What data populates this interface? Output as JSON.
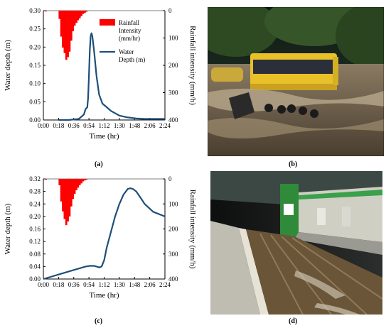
{
  "panels": {
    "a": {
      "caption": "(a)"
    },
    "b": {
      "caption": "(b)"
    },
    "c": {
      "caption": "(c)"
    },
    "d": {
      "caption": "(d)"
    }
  },
  "colors": {
    "rain": "#ff0000",
    "depth": "#1f4e79"
  },
  "chart_data": [
    {
      "type": "line",
      "panel": "a",
      "xlabel": "Time (hr)",
      "ylabel": "Water depth (m)",
      "y2label": "Rainfall intensity (mm/h)",
      "xticks": [
        "0:00",
        "0:18",
        "0:36",
        "0:54",
        "1:12",
        "1:30",
        "1:48",
        "2:06",
        "2:24"
      ],
      "yticks": [
        "0.00",
        "0.05",
        "0.10",
        "0.15",
        "0.20",
        "0.25",
        "0.30"
      ],
      "y2ticks": [
        "0",
        "100",
        "200",
        "300",
        "400"
      ],
      "xlim": [
        0,
        144
      ],
      "ylim": [
        0,
        0.3
      ],
      "y2lim": [
        0,
        400
      ],
      "y2_inverted": true,
      "legend": {
        "position": "top-right",
        "entries": [
          "Rainfall Intensity (mm/hr)",
          "Water Depth (m)"
        ]
      },
      "series": [
        {
          "name": "Rainfall Intensity (mm/hr)",
          "kind": "bar",
          "axis": "right",
          "x": [
            3,
            19,
            21,
            23,
            25,
            27,
            29,
            31,
            33,
            35,
            37,
            39,
            41,
            43,
            45,
            47,
            49,
            51
          ],
          "values": [
            3,
            30,
            95,
            135,
            155,
            180,
            170,
            150,
            110,
            75,
            55,
            45,
            35,
            28,
            20,
            12,
            8,
            4
          ]
        },
        {
          "name": "Water Depth (m)",
          "kind": "line",
          "axis": "left",
          "x": [
            18,
            30,
            42,
            48,
            50,
            52,
            53,
            54,
            55,
            56,
            57,
            58,
            60,
            63,
            66,
            70,
            75,
            80,
            90,
            100,
            110,
            120,
            130,
            144
          ],
          "values": [
            0.0,
            0.0,
            0.003,
            0.015,
            0.03,
            0.035,
            0.06,
            0.12,
            0.19,
            0.23,
            0.238,
            0.23,
            0.19,
            0.12,
            0.07,
            0.045,
            0.035,
            0.025,
            0.012,
            0.007,
            0.004,
            0.003,
            0.003,
            0.003
          ]
        }
      ]
    },
    {
      "type": "line",
      "panel": "c",
      "xlabel": "Time (hr)",
      "ylabel": "Water depth (m)",
      "y2label": "Rainfall intensity (mm/h)",
      "xticks": [
        "0:00",
        "0:18",
        "0:36",
        "0:54",
        "1:12",
        "1:30",
        "1:48",
        "2:06",
        "2:24"
      ],
      "yticks": [
        "0.00",
        "0.04",
        "0.08",
        "0.12",
        "0.16",
        "0.20",
        "0.24",
        "0.28",
        "0.32"
      ],
      "y2ticks": [
        "0",
        "100",
        "200",
        "300",
        "400"
      ],
      "xlim": [
        0,
        144
      ],
      "ylim": [
        0,
        0.32
      ],
      "y2lim": [
        0,
        400
      ],
      "y2_inverted": true,
      "series": [
        {
          "name": "Rainfall Intensity (mm/hr)",
          "kind": "bar",
          "axis": "right",
          "x": [
            3,
            19,
            21,
            23,
            25,
            27,
            29,
            31,
            33,
            35,
            37,
            39,
            41,
            43,
            45,
            47,
            49,
            51
          ],
          "values": [
            3,
            25,
            90,
            130,
            160,
            185,
            170,
            150,
            110,
            80,
            60,
            45,
            35,
            25,
            18,
            10,
            6,
            3
          ]
        },
        {
          "name": "Water Depth (m)",
          "kind": "line",
          "axis": "left",
          "x": [
            0,
            10,
            20,
            30,
            40,
            50,
            55,
            60,
            63,
            66,
            69,
            72,
            75,
            80,
            85,
            90,
            95,
            100,
            103,
            106,
            110,
            115,
            120,
            130,
            144
          ],
          "values": [
            0.0,
            0.008,
            0.016,
            0.024,
            0.032,
            0.04,
            0.042,
            0.042,
            0.04,
            0.037,
            0.04,
            0.06,
            0.1,
            0.15,
            0.2,
            0.24,
            0.27,
            0.288,
            0.29,
            0.288,
            0.28,
            0.26,
            0.24,
            0.215,
            0.2
          ]
        }
      ]
    }
  ]
}
